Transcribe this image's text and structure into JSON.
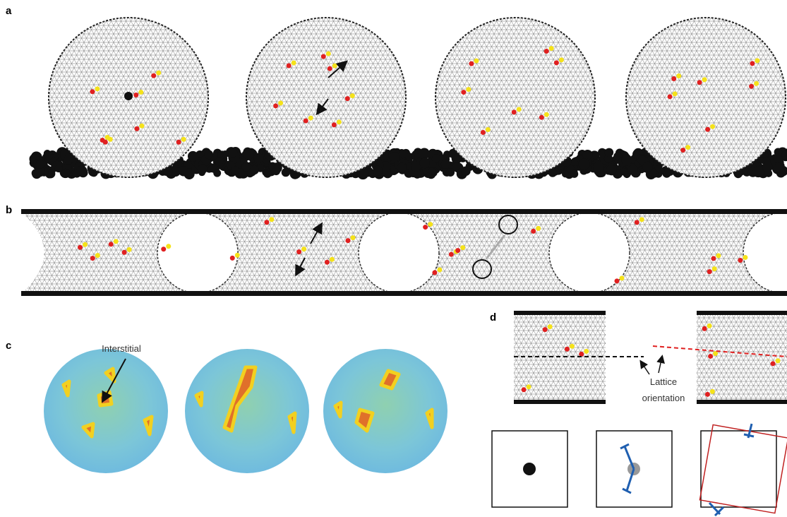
{
  "panel_labels": [
    "a",
    "b",
    "c",
    "d"
  ],
  "annotations": {
    "interstitial": "Interstitial",
    "lattice": [
      "Lattice",
      "orientation"
    ]
  }
}
